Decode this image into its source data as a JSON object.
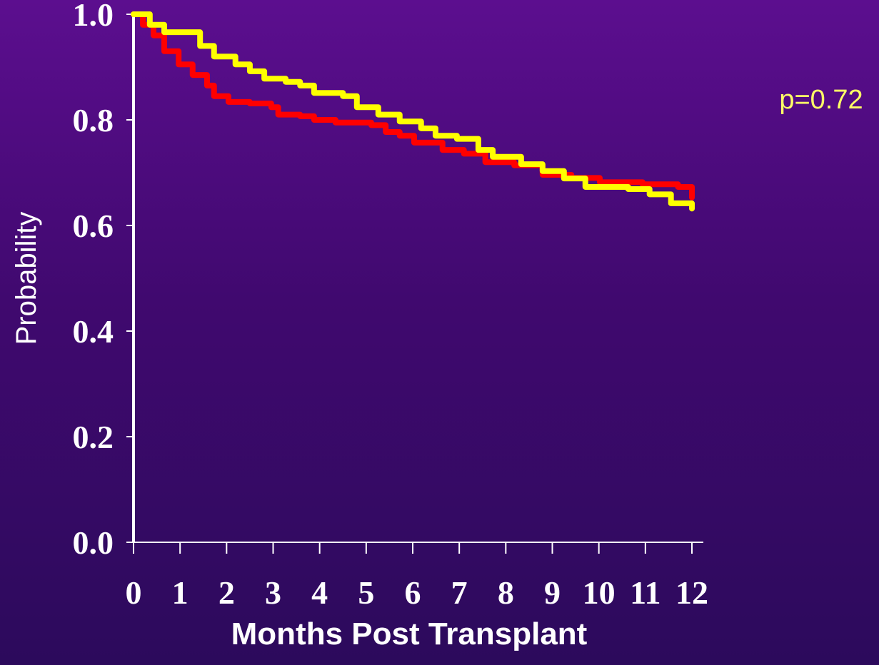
{
  "chart_data": {
    "type": "line",
    "interpolation": "step",
    "ylabel": "Probability",
    "xlabel": "Months Post Transplant",
    "annotation": "p=0.72",
    "annotation_color": "#ffff66",
    "xlim": [
      0,
      12
    ],
    "xticks": [
      0,
      1,
      2,
      3,
      4,
      5,
      6,
      7,
      8,
      9,
      10,
      11,
      12
    ],
    "ylim": [
      0,
      1
    ],
    "yticks": [
      {
        "value": 0,
        "label": "0.0"
      },
      0.2,
      0.4,
      0.6,
      0.8,
      {
        "value": 1,
        "label": "1.0"
      }
    ],
    "series": [
      {
        "color": "#ff0000",
        "x": [
          0,
          0.2,
          0.43,
          0.66,
          0.97,
          1.27,
          1.58,
          1.73,
          2.04,
          2.5,
          2.96,
          3.11,
          3.58,
          3.88,
          4.34,
          5.11,
          5.42,
          5.72,
          6.03,
          6.64,
          7.1,
          7.56,
          8.18,
          8.79,
          9.41,
          10.02,
          10.94,
          11.7,
          12
        ],
        "values": [
          1.0,
          0.98,
          0.96,
          0.93,
          0.905,
          0.885,
          0.865,
          0.845,
          0.834,
          0.831,
          0.824,
          0.81,
          0.807,
          0.8,
          0.795,
          0.79,
          0.777,
          0.77,
          0.757,
          0.743,
          0.736,
          0.72,
          0.714,
          0.696,
          0.69,
          0.682,
          0.678,
          0.673,
          0.653
        ]
      },
      {
        "color": "#ffff00",
        "x": [
          0,
          0.35,
          0.66,
          1.12,
          1.43,
          1.73,
          2.19,
          2.5,
          2.81,
          3.27,
          3.58,
          3.88,
          4.5,
          4.8,
          5.26,
          5.72,
          6.18,
          6.49,
          6.95,
          7.41,
          7.72,
          8.33,
          8.79,
          9.25,
          9.71,
          10.63,
          11.09,
          11.55,
          12
        ],
        "values": [
          1.0,
          0.98,
          0.966,
          0.966,
          0.94,
          0.92,
          0.905,
          0.892,
          0.878,
          0.872,
          0.865,
          0.851,
          0.845,
          0.824,
          0.81,
          0.797,
          0.784,
          0.77,
          0.764,
          0.743,
          0.73,
          0.716,
          0.703,
          0.689,
          0.673,
          0.669,
          0.659,
          0.642,
          0.632
        ]
      }
    ]
  }
}
